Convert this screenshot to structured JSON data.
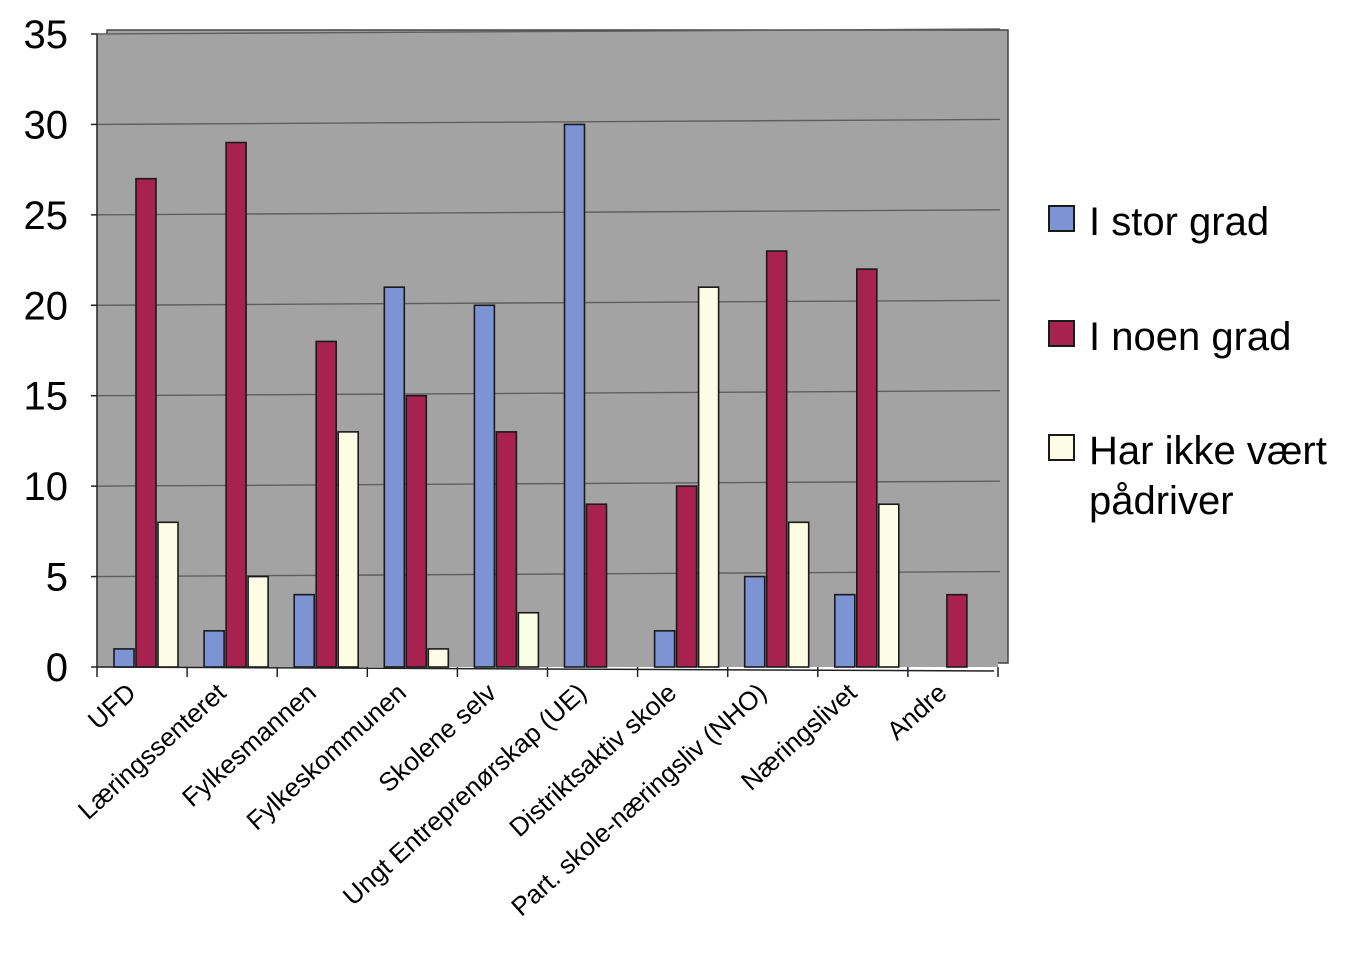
{
  "chart_data": {
    "type": "bar",
    "categories": [
      "UFD",
      "Læringssenteret",
      "Fylkesmannen",
      "Fylkeskommunen",
      "Skolene selv",
      "Ungt Entreprenørskap (UE)",
      "Distriktsaktiv skole",
      "Part. skole-næringsliv (NHO)",
      "Næringslivet",
      "Andre"
    ],
    "series": [
      {
        "name": "I stor grad",
        "values": [
          1,
          2,
          4,
          21,
          20,
          30,
          2,
          5,
          4,
          0
        ]
      },
      {
        "name": "I noen grad",
        "values": [
          27,
          29,
          18,
          15,
          13,
          9,
          10,
          23,
          22,
          4
        ]
      },
      {
        "name": "Har ikke vært pådriver",
        "name_lines": [
          "Har ikke vært",
          "pådriver"
        ],
        "values": [
          8,
          5,
          13,
          1,
          3,
          0,
          21,
          8,
          9,
          0
        ]
      }
    ],
    "ylim": [
      0,
      35
    ],
    "yticks": [
      "0",
      "5",
      "10",
      "15",
      "20",
      "25",
      "30",
      "35"
    ],
    "grid": true,
    "legend_position": "right",
    "colors": {
      "plot_background": "#a3a3a3",
      "gridline": "#5f5f5f",
      "series": [
        "#7c93d4",
        "#a8224f",
        "#fdfde6"
      ]
    }
  }
}
